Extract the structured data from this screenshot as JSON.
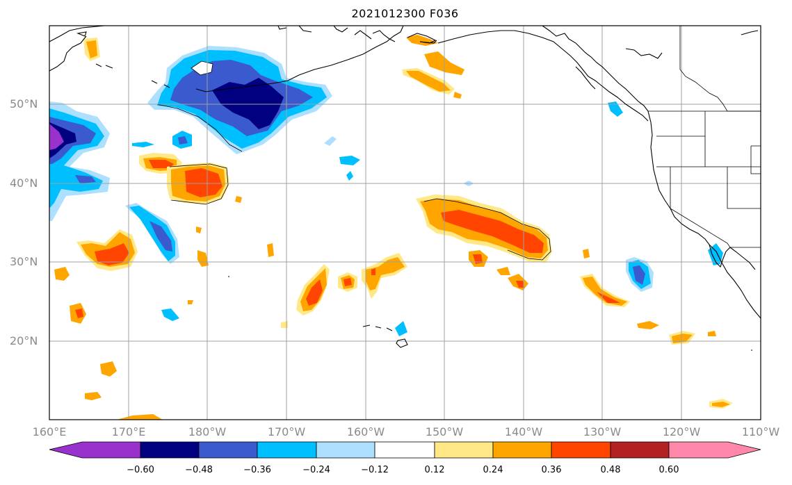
{
  "title": "2021012300 F036",
  "map": {
    "lat_labels": [
      "50°N",
      "40°N",
      "30°N",
      "20°N"
    ],
    "lon_labels": [
      "160°E",
      "170°E",
      "180°W",
      "170°W",
      "160°W",
      "150°W",
      "140°W",
      "130°W",
      "120°W",
      "110°W"
    ]
  },
  "colorbar": {
    "labels": [
      "−0.60",
      "−0.48",
      "−0.36",
      "−0.24",
      "−0.12",
      "0.12",
      "0.24",
      "0.36",
      "0.48",
      "0.60"
    ],
    "colors": [
      "#9932CC",
      "#000080",
      "#3A5ACD",
      "#00BFFF",
      "#ADDFFF",
      "#FFFFFF",
      "#FFE885",
      "#FFA500",
      "#FF4500",
      "#B22222",
      "#FF88AA"
    ]
  }
}
